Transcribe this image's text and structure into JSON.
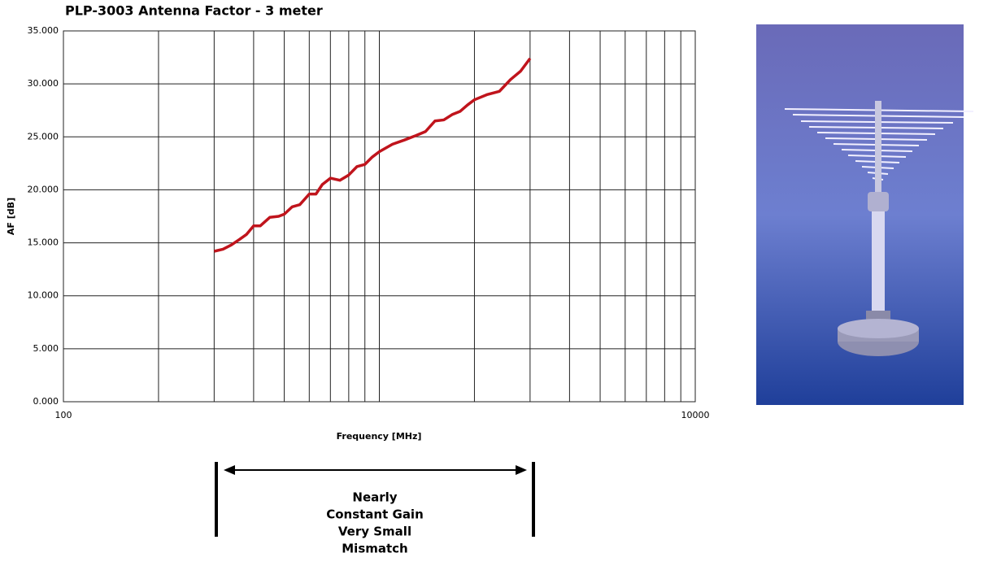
{
  "chart_data": {
    "type": "line",
    "title": "PLP-3003 Antenna Factor - 3 meter",
    "x_label": "Frequency [MHz]",
    "y_label": "AF [dB]",
    "x_scale": "log",
    "xlim": [
      100,
      10000
    ],
    "xticks": [
      100,
      10000
    ],
    "x_minor_grid": [
      200,
      300,
      400,
      500,
      600,
      700,
      800,
      900,
      1000,
      2000,
      3000,
      4000,
      5000,
      6000,
      7000,
      8000,
      9000
    ],
    "ylim": [
      0,
      35
    ],
    "yticks": [
      {
        "value": 0,
        "label": "0.000"
      },
      {
        "value": 5,
        "label": "5.000"
      },
      {
        "value": 10,
        "label": "10.000"
      },
      {
        "value": 15,
        "label": "15.000"
      },
      {
        "value": 20,
        "label": "20.000"
      },
      {
        "value": 25,
        "label": "25.000"
      },
      {
        "value": 30,
        "label": "30.000"
      },
      {
        "value": 35,
        "label": "35.000"
      }
    ],
    "grid": true,
    "series": [
      {
        "color": "#c0141c",
        "x": [
          300,
          320,
          340,
          360,
          380,
          400,
          420,
          450,
          480,
          500,
          530,
          560,
          600,
          630,
          660,
          700,
          750,
          800,
          850,
          900,
          950,
          1000,
          1100,
          1200,
          1300,
          1400,
          1500,
          1600,
          1700,
          1800,
          1900,
          2000,
          2200,
          2400,
          2600,
          2800,
          3000
        ],
        "values": [
          14.2,
          14.4,
          14.8,
          15.3,
          15.8,
          16.6,
          16.6,
          17.4,
          17.5,
          17.7,
          18.4,
          18.6,
          19.6,
          19.6,
          20.5,
          21.1,
          20.9,
          21.4,
          22.2,
          22.4,
          23.1,
          23.6,
          24.3,
          24.7,
          25.1,
          25.5,
          26.5,
          26.6,
          27.1,
          27.4,
          28.0,
          28.5,
          29.0,
          29.3,
          30.4,
          31.2,
          32.4
        ]
      }
    ]
  },
  "annotation": {
    "lines": [
      "Nearly",
      "Constant Gain",
      "Very Small",
      "Mismatch"
    ]
  }
}
